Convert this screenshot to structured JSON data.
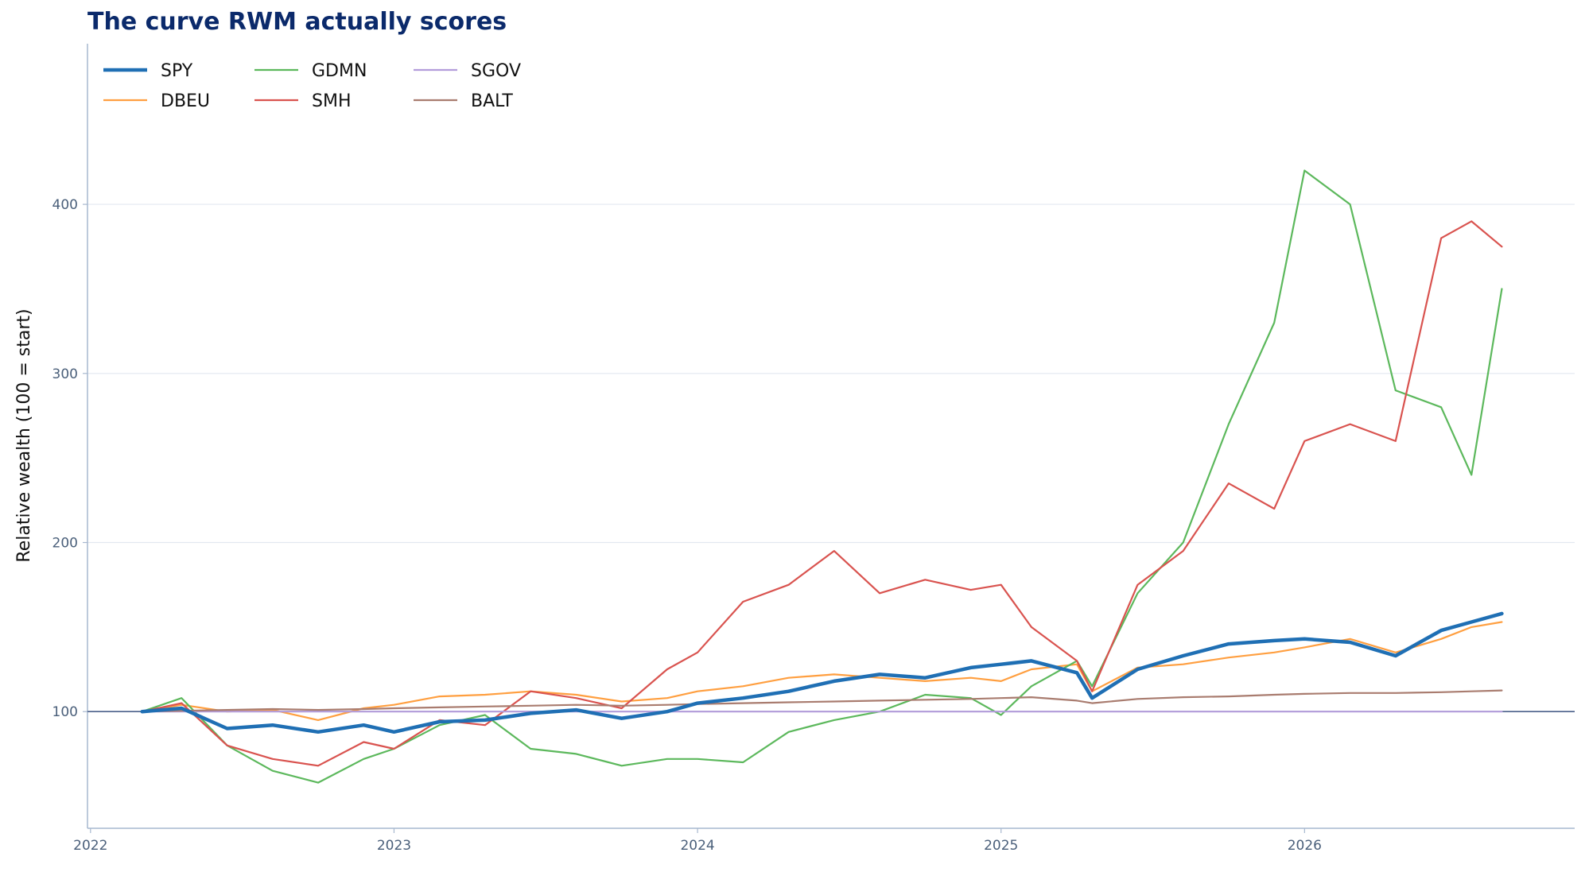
{
  "chart_data": {
    "type": "line",
    "title": "The curve RWM actually scores",
    "xlabel": "",
    "ylabel": "Relative wealth (100 = start)",
    "x_ticks": [
      "2022",
      "2023",
      "2024",
      "2025",
      "2026"
    ],
    "y_ticks": [
      100,
      200,
      300,
      400
    ],
    "xlim": [
      2021.99,
      2026.89
    ],
    "ylim": [
      31,
      495
    ],
    "grid": "horizontal",
    "reference_line": 100,
    "legend_position": "top-left",
    "x_dates": [
      2022.17,
      2022.3,
      2022.45,
      2022.6,
      2022.75,
      2022.9,
      2023.0,
      2023.15,
      2023.3,
      2023.45,
      2023.6,
      2023.75,
      2023.9,
      2024.0,
      2024.15,
      2024.3,
      2024.45,
      2024.6,
      2024.75,
      2024.9,
      2025.0,
      2025.1,
      2025.25,
      2025.3,
      2025.45,
      2025.6,
      2025.75,
      2025.9,
      2026.0,
      2026.15,
      2026.3,
      2026.45,
      2026.55,
      2026.65
    ],
    "series": [
      {
        "name": "SPY",
        "color": "#1f6fb4",
        "width": 4.5,
        "values": [
          100,
          102,
          90,
          92,
          88,
          92,
          88,
          94,
          95,
          99,
          101,
          96,
          100,
          105,
          108,
          112,
          118,
          122,
          120,
          126,
          128,
          130,
          123,
          108,
          125,
          133,
          140,
          142,
          143,
          141,
          133,
          148,
          153,
          158
        ]
      },
      {
        "name": "DBEU",
        "color": "#ff9f40",
        "width": 2.2,
        "values": [
          100,
          104,
          100,
          101,
          95,
          102,
          104,
          109,
          110,
          112,
          110,
          106,
          108,
          112,
          115,
          120,
          122,
          120,
          118,
          120,
          118,
          125,
          128,
          112,
          126,
          128,
          132,
          135,
          138,
          143,
          135,
          143,
          150,
          153
        ]
      },
      {
        "name": "GDMN",
        "color": "#5cb85c",
        "width": 2.2,
        "values": [
          100,
          108,
          80,
          65,
          58,
          72,
          78,
          92,
          98,
          78,
          75,
          68,
          72,
          72,
          70,
          88,
          95,
          100,
          110,
          108,
          98,
          115,
          130,
          115,
          170,
          200,
          270,
          330,
          420,
          400,
          290,
          280,
          240,
          350
        ]
      },
      {
        "name": "SMH",
        "color": "#d9534f",
        "width": 2.2,
        "values": [
          100,
          105,
          80,
          72,
          68,
          82,
          78,
          95,
          92,
          112,
          108,
          102,
          125,
          135,
          165,
          175,
          195,
          170,
          178,
          172,
          175,
          150,
          130,
          112,
          175,
          195,
          235,
          220,
          260,
          270,
          260,
          380,
          390,
          375
        ]
      },
      {
        "name": "SGOV",
        "color": "#b39ddb",
        "width": 2.2,
        "values": [
          100,
          100,
          100,
          100,
          100,
          100,
          100,
          100,
          100,
          100,
          100,
          100,
          100,
          100,
          100,
          100,
          100,
          100,
          100,
          100,
          100,
          100,
          100,
          100,
          100,
          100,
          100,
          100,
          100,
          100,
          100,
          100,
          100,
          100
        ]
      },
      {
        "name": "BALT",
        "color": "#a97c6f",
        "width": 2.2,
        "values": [
          100,
          100.5,
          101,
          101.5,
          101,
          101.5,
          102,
          102.5,
          103,
          103.5,
          104,
          103.5,
          104,
          104.5,
          105,
          105.5,
          106,
          106.5,
          107,
          107.5,
          108,
          108.5,
          106.5,
          105,
          107.5,
          108.5,
          109,
          110,
          110.5,
          111,
          111,
          111.5,
          112,
          112.5
        ]
      }
    ]
  }
}
